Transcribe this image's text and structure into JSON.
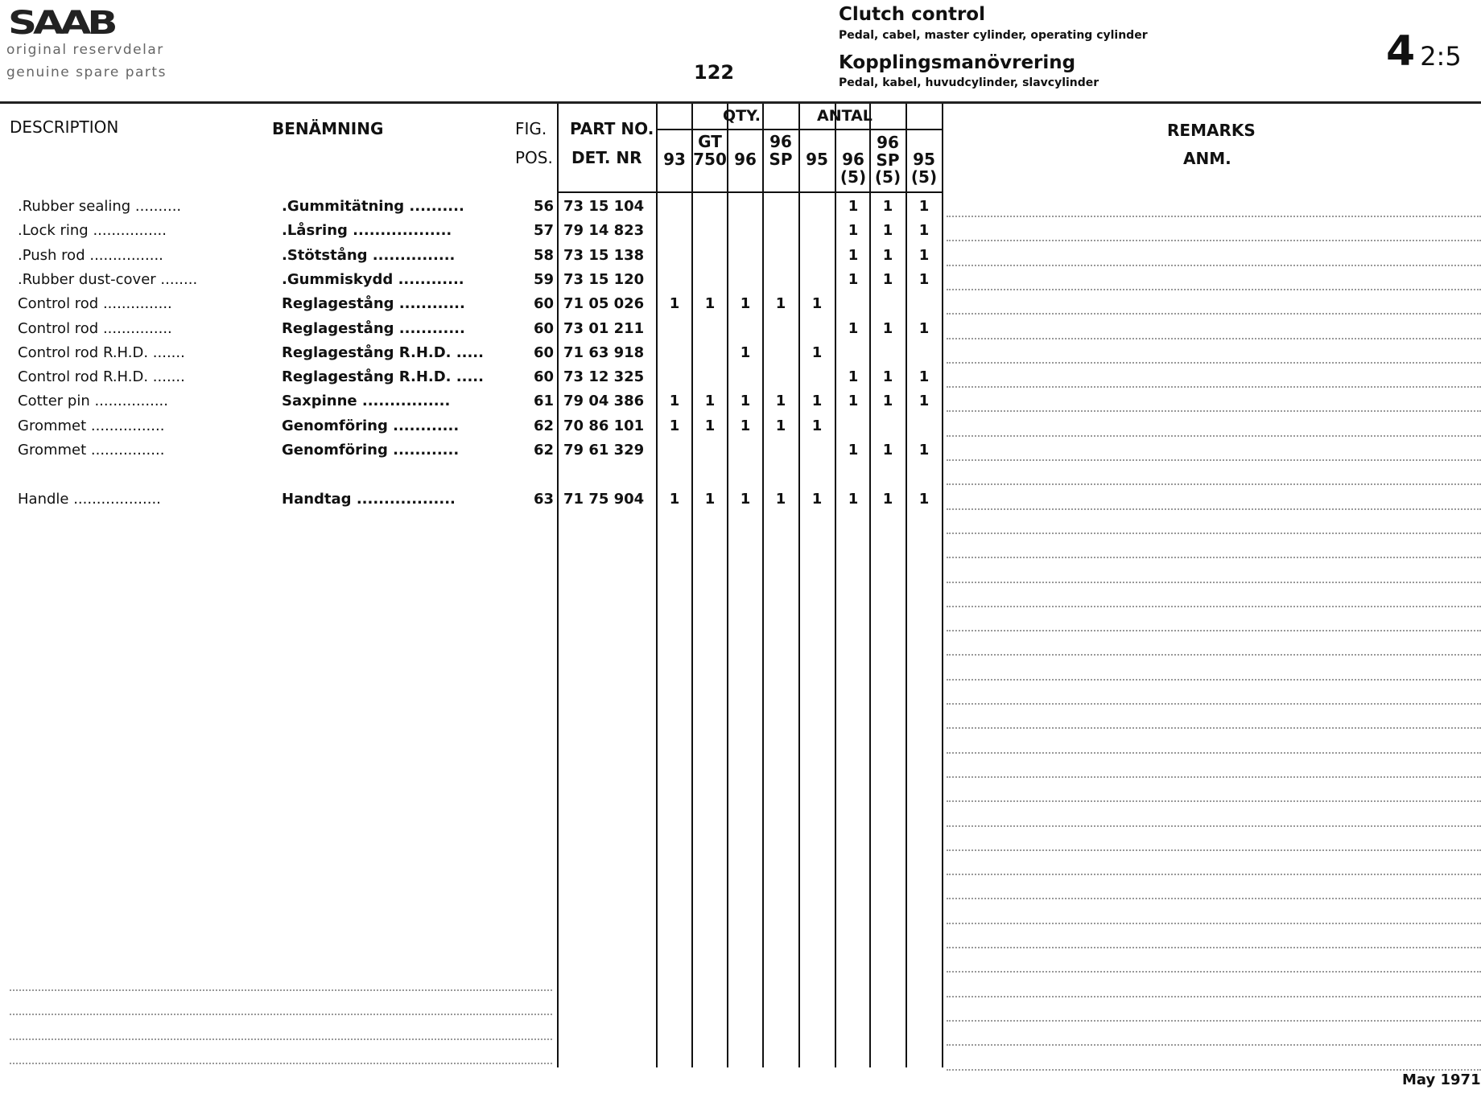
{
  "header": {
    "logo": "SAAB",
    "tagline_sv": "original reservdelar",
    "tagline_en": "genuine spare parts",
    "page_number": "122",
    "title_en": "Clutch control",
    "subtitle_en": "Pedal, cabel, master cylinder, operating cylinder",
    "title_sv": "Kopplingsmanövrering",
    "subtitle_sv": "Pedal, kabel, huvudcylinder, slavcylinder",
    "section_major": "4",
    "section_minor": "2:5"
  },
  "columns": {
    "description": "DESCRIPTION",
    "benamning": "BENÄMNING",
    "fig": "FIG.",
    "pos": "POS.",
    "part_no": "PART NO.",
    "det_nr": "DET. NR",
    "qty": "QTY.",
    "antal": "ANTAL",
    "models": [
      [
        "",
        "93"
      ],
      [
        "GT",
        "750"
      ],
      [
        "",
        "96"
      ],
      [
        "96",
        "SP"
      ],
      [
        "",
        "95"
      ],
      [
        "96",
        "(5)"
      ],
      [
        "96 SP",
        "(5)"
      ],
      [
        "95",
        "(5)"
      ]
    ],
    "remarks": "REMARKS",
    "anm": "ANM."
  },
  "rows": [
    {
      "description": ".Rubber sealing ..........",
      "benamning": ".Gummitätning  ..........",
      "pos": "56",
      "part_no": "73 15 104",
      "qty": [
        "",
        "",
        "",
        "",
        "",
        "1",
        "1",
        "1"
      ]
    },
    {
      "description": ".Lock ring ................",
      "benamning": ".Låsring ..................",
      "pos": "57",
      "part_no": "79 14 823",
      "qty": [
        "",
        "",
        "",
        "",
        "",
        "1",
        "1",
        "1"
      ]
    },
    {
      "description": ".Push rod ................",
      "benamning": ".Stötstång ...............",
      "pos": "58",
      "part_no": "73 15 138",
      "qty": [
        "",
        "",
        "",
        "",
        "",
        "1",
        "1",
        "1"
      ]
    },
    {
      "description": ".Rubber dust-cover ........",
      "benamning": ".Gummiskydd ............",
      "pos": "59",
      "part_no": "73 15 120",
      "qty": [
        "",
        "",
        "",
        "",
        "",
        "1",
        "1",
        "1"
      ]
    },
    {
      "description": "Control rod ...............",
      "benamning": "Reglagestång ............",
      "pos": "60",
      "part_no": "71 05 026",
      "qty": [
        "1",
        "1",
        "1",
        "1",
        "1",
        "",
        "",
        ""
      ]
    },
    {
      "description": "Control rod ...............",
      "benamning": "Reglagestång ............",
      "pos": "60",
      "part_no": "73 01 211",
      "qty": [
        "",
        "",
        "",
        "",
        "",
        "1",
        "1",
        "1"
      ]
    },
    {
      "description": "Control rod R.H.D.  .......",
      "benamning": "Reglagestång R.H.D.  .....",
      "pos": "60",
      "part_no": "71 63 918",
      "qty": [
        "",
        "",
        "1",
        "",
        "1",
        "",
        "",
        ""
      ]
    },
    {
      "description": "Control rod R.H.D.  .......",
      "benamning": "Reglagestång R.H.D.  .....",
      "pos": "60",
      "part_no": "73 12 325",
      "qty": [
        "",
        "",
        "",
        "",
        "",
        "1",
        "1",
        "1"
      ]
    },
    {
      "description": "Cotter pin ................",
      "benamning": "Saxpinne ................",
      "pos": "61",
      "part_no": "79 04 386",
      "qty": [
        "1",
        "1",
        "1",
        "1",
        "1",
        "1",
        "1",
        "1"
      ]
    },
    {
      "description": "Grommet  ................",
      "benamning": "Genomföring ............",
      "pos": "62",
      "part_no": "70 86 101",
      "qty": [
        "1",
        "1",
        "1",
        "1",
        "1",
        "",
        "",
        ""
      ]
    },
    {
      "description": "Grommet  ................",
      "benamning": "Genomföring ............",
      "pos": "62",
      "part_no": "79 61 329",
      "qty": [
        "",
        "",
        "",
        "",
        "",
        "1",
        "1",
        "1"
      ]
    },
    {
      "description": "Handle ...................",
      "benamning": "Handtag ..................",
      "pos": "63",
      "part_no": "71 75 904",
      "qty": [
        "1",
        "1",
        "1",
        "1",
        "1",
        "1",
        "1",
        "1"
      ]
    }
  ],
  "footer": {
    "date": "May 1971"
  }
}
